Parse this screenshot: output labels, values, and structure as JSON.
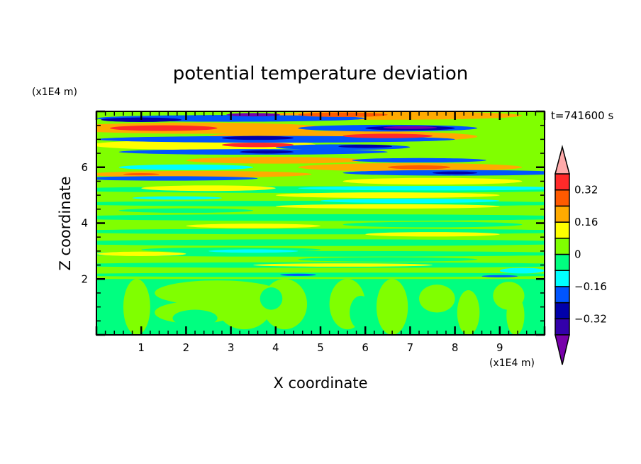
{
  "chart_data": {
    "type": "heatmap",
    "title": "potential temperature deviation",
    "xlabel": "X coordinate",
    "ylabel": "Z coordinate",
    "x_unit": "(x1E4 m)",
    "y_unit": "(x1E4 m)",
    "time_label": "t=741600 s",
    "xlim": [
      0,
      10
    ],
    "ylim": [
      0,
      8
    ],
    "xticks": [
      "1",
      "2",
      "3",
      "4",
      "5",
      "6",
      "7",
      "8",
      "9"
    ],
    "yticks": [
      "2",
      "4",
      "6"
    ],
    "colorbar": {
      "levels": [
        -0.4,
        -0.32,
        -0.24,
        -0.16,
        -0.08,
        0,
        0.08,
        0.16,
        0.24,
        0.32,
        0.4
      ],
      "tick_labels": [
        {
          "value": 0.32,
          "label": "0.32"
        },
        {
          "value": 0.16,
          "label": "0.16"
        },
        {
          "value": 0,
          "label": "0"
        },
        {
          "value": -0.16,
          "label": "−0.16"
        },
        {
          "value": -0.32,
          "label": "−0.32"
        }
      ],
      "colors": [
        "#7700aa",
        "#3300aa",
        "#0000aa",
        "#0055ff",
        "#00ffff",
        "#00ff80",
        "#80ff00",
        "#ffff00",
        "#ffaa00",
        "#ff5a00",
        "#ff2a2a",
        "#ffaaaa"
      ]
    },
    "background_lower": {
      "z_max": 2,
      "value": -0.04
    },
    "background_upper": {
      "value": 0.04
    },
    "features_format": [
      "x_center",
      "z_center",
      "x_halfwidth",
      "z_halfwidth",
      "value"
    ],
    "features": [
      [
        5,
        5.2,
        6,
        0.12,
        -0.04
      ],
      [
        5,
        4.7,
        6,
        0.1,
        -0.04
      ],
      [
        5,
        4.2,
        6,
        0.12,
        -0.04
      ],
      [
        5,
        3.7,
        6,
        0.1,
        -0.04
      ],
      [
        5,
        3.3,
        6,
        0.12,
        -0.04
      ],
      [
        5,
        2.9,
        6,
        0.1,
        -0.04
      ],
      [
        5,
        2.5,
        6,
        0.1,
        -0.04
      ],
      [
        5,
        2.15,
        6,
        0.08,
        -0.04
      ],
      [
        2,
        4.45,
        1.5,
        0.08,
        -0.04
      ],
      [
        7.5,
        3.95,
        2,
        0.1,
        -0.04
      ],
      [
        3,
        3.05,
        2,
        0.08,
        -0.04
      ],
      [
        6.5,
        2.7,
        2,
        0.08,
        -0.04
      ],
      [
        0.9,
        1.0,
        0.3,
        1.0,
        0.04
      ],
      [
        2.7,
        1.5,
        1.4,
        0.45,
        0.04
      ],
      [
        2.2,
        0.8,
        0.9,
        0.4,
        0.04
      ],
      [
        3.3,
        1.0,
        0.6,
        0.8,
        0.04
      ],
      [
        4.2,
        1.1,
        0.5,
        0.9,
        0.04
      ],
      [
        5.6,
        1.1,
        0.4,
        0.9,
        0.04
      ],
      [
        6.6,
        1.0,
        0.35,
        1.0,
        0.04
      ],
      [
        7.6,
        1.3,
        0.4,
        0.5,
        0.04
      ],
      [
        8.3,
        0.8,
        0.25,
        0.8,
        0.04
      ],
      [
        9.2,
        1.4,
        0.35,
        0.5,
        0.04
      ],
      [
        9.35,
        0.7,
        0.2,
        0.7,
        0.04
      ],
      [
        2.2,
        0.6,
        0.5,
        0.3,
        -0.04
      ],
      [
        3.9,
        1.3,
        0.25,
        0.4,
        -0.04
      ],
      [
        5.9,
        0.8,
        0.25,
        0.6,
        -0.04
      ],
      [
        2.2,
        7.4,
        3,
        0.2,
        0.2
      ],
      [
        6.5,
        7.85,
        3,
        0.15,
        0.2
      ],
      [
        5.5,
        7.1,
        3,
        0.2,
        0.2
      ],
      [
        2.4,
        6.8,
        2.5,
        0.18,
        0.12
      ],
      [
        4,
        6.25,
        2,
        0.12,
        0.2
      ],
      [
        7,
        6.0,
        2.5,
        0.15,
        0.2
      ],
      [
        2.3,
        5.75,
        2.5,
        0.12,
        0.2
      ],
      [
        7.5,
        5.5,
        2,
        0.12,
        0.12
      ],
      [
        2.5,
        5.25,
        1.5,
        0.1,
        0.12
      ],
      [
        6.5,
        5.0,
        2.5,
        0.1,
        0.12
      ],
      [
        6.5,
        4.6,
        2.5,
        0.08,
        0.12
      ],
      [
        3.5,
        3.9,
        1.5,
        0.08,
        0.12
      ],
      [
        7.5,
        3.6,
        1.5,
        0.08,
        0.12
      ],
      [
        1,
        2.9,
        1,
        0.08,
        0.12
      ],
      [
        5.5,
        2.5,
        2,
        0.06,
        0.12
      ],
      [
        3,
        7.75,
        3,
        0.12,
        -0.2
      ],
      [
        6.5,
        7.4,
        2,
        0.12,
        -0.2
      ],
      [
        4,
        7.0,
        4,
        0.12,
        -0.2
      ],
      [
        5.5,
        6.72,
        1.5,
        0.1,
        -0.2
      ],
      [
        3.5,
        6.55,
        3,
        0.1,
        -0.2
      ],
      [
        7.2,
        6.25,
        1.5,
        0.08,
        -0.2
      ],
      [
        2,
        6.0,
        1.5,
        0.1,
        -0.12
      ],
      [
        1.6,
        5.6,
        2,
        0.08,
        -0.2
      ],
      [
        8,
        5.8,
        2.5,
        0.1,
        -0.2
      ],
      [
        7.5,
        5.25,
        3,
        0.08,
        -0.12
      ],
      [
        1.8,
        4.9,
        1,
        0.06,
        -0.12
      ],
      [
        7,
        4.8,
        2,
        0.08,
        -0.12
      ],
      [
        3.5,
        3.0,
        1,
        0.06,
        -0.12
      ],
      [
        9.5,
        2.3,
        0.5,
        0.1,
        -0.12
      ],
      [
        1,
        7.7,
        0.9,
        0.08,
        -0.3
      ],
      [
        3.5,
        7.88,
        0.6,
        0.06,
        -0.42
      ],
      [
        7,
        7.4,
        1,
        0.08,
        -0.3
      ],
      [
        7,
        7.42,
        0.6,
        0.05,
        -0.42
      ],
      [
        3.6,
        7.05,
        0.8,
        0.07,
        -0.3
      ],
      [
        6,
        6.75,
        0.6,
        0.06,
        -0.3
      ],
      [
        3.8,
        6.55,
        0.6,
        0.06,
        -0.3
      ],
      [
        8,
        5.8,
        0.5,
        0.05,
        -0.3
      ],
      [
        4.5,
        2.15,
        0.4,
        0.04,
        -0.2
      ],
      [
        9,
        2.1,
        0.4,
        0.04,
        -0.2
      ],
      [
        1.5,
        7.4,
        1.2,
        0.1,
        0.36
      ],
      [
        5.5,
        7.88,
        1,
        0.08,
        0.28
      ],
      [
        6.5,
        7.12,
        1,
        0.08,
        0.36
      ],
      [
        3.6,
        6.8,
        0.8,
        0.08,
        0.36
      ],
      [
        7.2,
        6.0,
        0.7,
        0.07,
        0.28
      ],
      [
        1,
        5.75,
        0.4,
        0.04,
        0.28
      ]
    ]
  }
}
